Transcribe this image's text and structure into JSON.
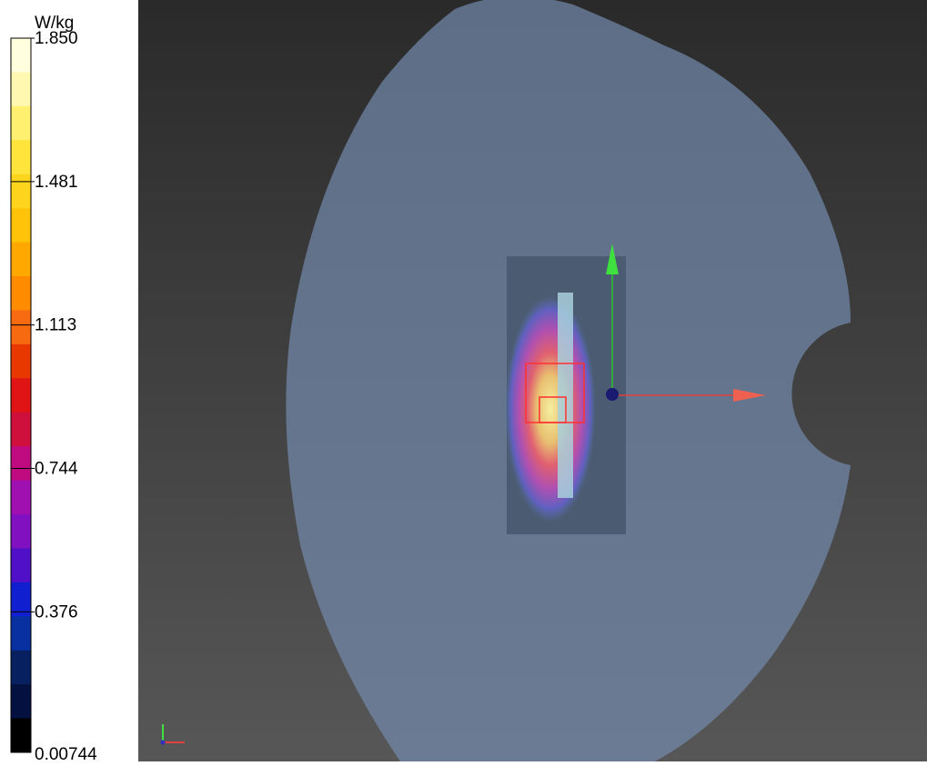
{
  "colorbar": {
    "unit": "W/kg",
    "ticks": [
      "1.850",
      "1.481",
      "1.113",
      "0.744",
      "0.376",
      "0.00744"
    ],
    "colors": [
      "#ffffe0",
      "#fff8b0",
      "#fff070",
      "#ffe43c",
      "#ffd41c",
      "#ffc40a",
      "#ffa800",
      "#ff8c00",
      "#f86a10",
      "#e83800",
      "#e01414",
      "#d0103c",
      "#c00a80",
      "#a010b0",
      "#8010c0",
      "#5010c8",
      "#1020d0",
      "#0830a0",
      "#062060",
      "#041040",
      "#000000"
    ]
  }
}
